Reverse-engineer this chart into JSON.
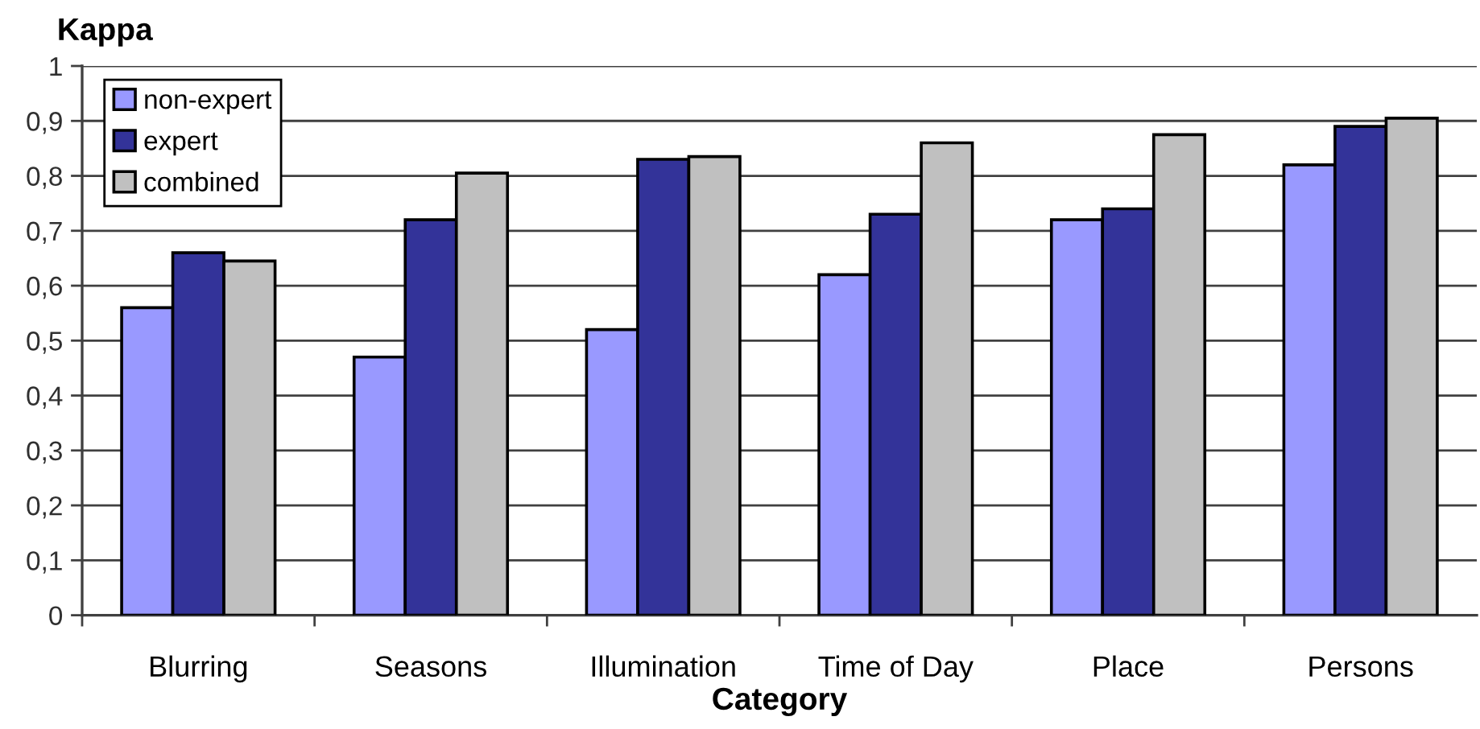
{
  "chart_data": {
    "type": "bar",
    "ylabel": "Kappa",
    "xlabel": "Category",
    "categories": [
      "Blurring",
      "Seasons",
      "Illumination",
      "Time of Day",
      "Place",
      "Persons"
    ],
    "series": [
      {
        "name": "non-expert",
        "color": "#9999ff",
        "values": [
          0.56,
          0.47,
          0.52,
          0.62,
          0.72,
          0.82
        ]
      },
      {
        "name": "expert",
        "color": "#333399",
        "values": [
          0.66,
          0.72,
          0.83,
          0.73,
          0.74,
          0.89
        ]
      },
      {
        "name": "combined",
        "color": "#c0c0c0",
        "values": [
          0.645,
          0.805,
          0.835,
          0.86,
          0.875,
          0.905
        ]
      }
    ],
    "ylim": [
      0,
      1
    ],
    "yticks": [
      0,
      {
        "value": 0.1,
        "label": "0,1"
      },
      {
        "value": 0.2,
        "label": "0,2"
      },
      {
        "value": 0.3,
        "label": "0,3"
      },
      {
        "value": 0.4,
        "label": "0,4"
      },
      {
        "value": 0.5,
        "label": "0,5"
      },
      {
        "value": 0.6,
        "label": "0,6"
      },
      {
        "value": 0.7,
        "label": "0,7"
      },
      {
        "value": 0.8,
        "label": "0,8"
      },
      {
        "value": 0.9,
        "label": "0,9"
      },
      1
    ],
    "grid": "y",
    "legend": "top left"
  }
}
